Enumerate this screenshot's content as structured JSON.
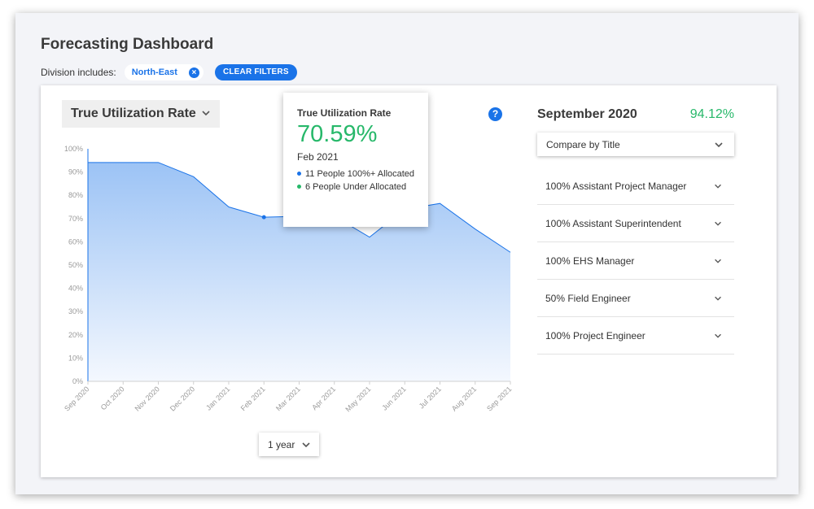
{
  "page_title": "Forecasting Dashboard",
  "filters": {
    "label": "Division includes:",
    "chip_label": "North-East",
    "close_glyph": "×",
    "clear_label": "CLEAR FILTERS"
  },
  "metric_select": {
    "label": "True Utilization Rate"
  },
  "help_glyph": "?",
  "tooltip": {
    "title": "True Utilization Rate",
    "value": "70.59%",
    "date": "Feb 2021",
    "items": [
      {
        "text": "11 People 100%+ Allocated",
        "color": "#1a73e8"
      },
      {
        "text": "6 People Under Allocated",
        "color": "#27b86a"
      }
    ]
  },
  "range_select": {
    "label": "1 year"
  },
  "side_panel": {
    "month": "September 2020",
    "rate": "94.12%",
    "compare_label": "Compare by Title",
    "roles": [
      "100% Assistant Project Manager",
      "100% Assistant Superintendent",
      "100% EHS Manager",
      "50% Field Engineer",
      "100% Project Engineer"
    ]
  },
  "colors": {
    "accent": "#1a73e8",
    "positive": "#27b86a",
    "area_top": "#9cc3f5",
    "area_bottom": "#f4f8fe"
  },
  "chart_data": {
    "type": "area",
    "categories": [
      "Sep 2020",
      "Oct 2020",
      "Nov 2020",
      "Dec 2020",
      "Jan 2021",
      "Feb 2021",
      "Mar 2021",
      "Apr 2021",
      "May 2021",
      "Jun 2021",
      "Jul 2021",
      "Aug 2021",
      "Sep 2021"
    ],
    "values": [
      94.12,
      94.12,
      94.12,
      88,
      75,
      70.59,
      71,
      71,
      62,
      74,
      76.5,
      65.5,
      55.5
    ],
    "highlight_index": 5,
    "yticks": [
      "0%",
      "10%",
      "20%",
      "30%",
      "40%",
      "50%",
      "60%",
      "70%",
      "80%",
      "90%",
      "100%"
    ],
    "ylim": [
      0,
      100
    ]
  }
}
